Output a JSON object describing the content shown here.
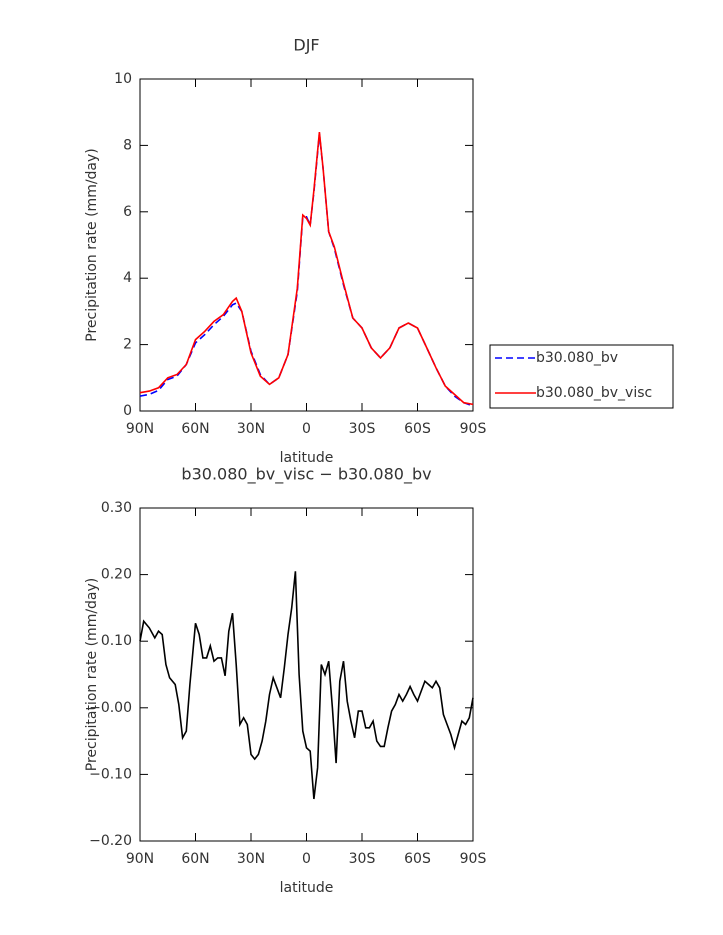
{
  "chart_data": [
    {
      "type": "line",
      "title": "DJF",
      "xlabel": "latitude",
      "ylabel": "Precipitation rate (mm/day)",
      "x": [
        90,
        85,
        80,
        75,
        70,
        65,
        60,
        55,
        50,
        45,
        40,
        38,
        35,
        30,
        25,
        20,
        15,
        10,
        5,
        2,
        0,
        -2,
        -4,
        -7,
        -9,
        -12,
        -15,
        -20,
        -25,
        -30,
        -35,
        -40,
        -45,
        -50,
        -55,
        -60,
        -65,
        -70,
        -75,
        -80,
        -85,
        -90
      ],
      "series": [
        {
          "name": "b30.080_bv",
          "color": "#0000ff",
          "line_style": "dashed",
          "values": [
            0.45,
            0.5,
            0.62,
            0.95,
            1.05,
            1.4,
            2.05,
            2.3,
            2.6,
            2.85,
            3.2,
            3.25,
            3.0,
            1.8,
            1.1,
            0.8,
            1.0,
            1.7,
            3.6,
            5.85,
            5.85,
            5.6,
            6.6,
            8.35,
            7.3,
            5.4,
            4.9,
            3.8,
            2.8,
            2.5,
            1.9,
            1.6,
            1.9,
            2.5,
            2.65,
            2.5,
            1.9,
            1.3,
            0.75,
            0.45,
            0.25,
            0.15
          ]
        },
        {
          "name": "b30.080_bv_visc",
          "color": "#ff0000",
          "line_style": "solid",
          "values": [
            0.55,
            0.6,
            0.7,
            1.0,
            1.1,
            1.4,
            2.15,
            2.4,
            2.7,
            2.9,
            3.3,
            3.4,
            3.0,
            1.75,
            1.05,
            0.8,
            1.0,
            1.7,
            3.7,
            5.9,
            5.8,
            5.6,
            6.65,
            8.4,
            7.3,
            5.4,
            4.95,
            3.85,
            2.8,
            2.5,
            1.9,
            1.6,
            1.9,
            2.5,
            2.65,
            2.5,
            1.9,
            1.3,
            0.75,
            0.5,
            0.25,
            0.2
          ]
        }
      ],
      "xlim": [
        90,
        -90
      ],
      "xticks": [
        {
          "value": 90,
          "label": "90N"
        },
        {
          "value": 60,
          "label": "60N"
        },
        {
          "value": 30,
          "label": "30N"
        },
        0,
        {
          "value": -30,
          "label": "30S"
        },
        {
          "value": -60,
          "label": "60S"
        },
        {
          "value": -90,
          "label": "90S"
        }
      ],
      "ylim": [
        0,
        10
      ],
      "yticks": [
        0,
        2,
        4,
        6,
        8,
        10
      ],
      "legend": "right"
    },
    {
      "type": "line",
      "title": "b30.080_bv_visc − b30.080_bv",
      "xlabel": "latitude",
      "ylabel": "Precipitation rate (mm/day)",
      "color": "#000000",
      "line_style": "solid",
      "x": [
        90,
        88,
        85,
        82,
        80,
        78,
        76,
        74,
        71,
        69,
        67,
        65,
        63,
        60,
        58,
        56,
        54,
        52,
        50,
        48,
        46,
        44,
        42,
        40,
        38,
        36,
        34,
        32,
        30,
        28,
        26,
        24,
        22,
        20,
        18,
        16,
        14,
        12,
        10,
        8,
        6,
        4,
        2,
        0,
        -2,
        -4,
        -6,
        -8,
        -10,
        -12,
        -14,
        -16,
        -18,
        -20,
        -22,
        -24,
        -26,
        -28,
        -30,
        -32,
        -34,
        -36,
        -38,
        -40,
        -42,
        -44,
        -46,
        -48,
        -50,
        -52,
        -54,
        -56,
        -58,
        -60,
        -62,
        -64,
        -66,
        -68,
        -70,
        -72,
        -74,
        -76,
        -78,
        -80,
        -82,
        -84,
        -86,
        -88,
        -90
      ],
      "values": [
        0.1,
        0.13,
        0.12,
        0.105,
        0.115,
        0.11,
        0.065,
        0.045,
        0.035,
        0.005,
        -0.045,
        -0.035,
        0.035,
        0.127,
        0.11,
        0.075,
        0.075,
        0.093,
        0.07,
        0.075,
        0.075,
        0.048,
        0.115,
        0.142,
        0.065,
        -0.025,
        -0.015,
        -0.025,
        -0.07,
        -0.077,
        -0.07,
        -0.05,
        -0.02,
        0.02,
        0.045,
        0.03,
        0.015,
        0.06,
        0.11,
        0.15,
        0.205,
        0.05,
        -0.035,
        -0.06,
        -0.065,
        -0.137,
        -0.09,
        0.065,
        0.05,
        0.07,
        0.0,
        -0.083,
        0.04,
        0.07,
        0.01,
        -0.02,
        -0.045,
        -0.005,
        -0.005,
        -0.03,
        -0.03,
        -0.02,
        -0.05,
        -0.058,
        -0.058,
        -0.03,
        -0.005,
        0.005,
        0.02,
        0.01,
        0.02,
        0.032,
        0.02,
        0.01,
        0.025,
        0.04,
        0.035,
        0.03,
        0.04,
        0.03,
        -0.01,
        -0.025,
        -0.04,
        -0.06,
        -0.04,
        -0.02,
        -0.025,
        -0.015,
        0.015
      ],
      "xlim": [
        90,
        -90
      ],
      "xticks": [
        {
          "value": 90,
          "label": "90N"
        },
        {
          "value": 60,
          "label": "60N"
        },
        {
          "value": 30,
          "label": "30N"
        },
        0,
        {
          "value": -30,
          "label": "30S"
        },
        {
          "value": -60,
          "label": "60S"
        },
        {
          "value": -90,
          "label": "90S"
        }
      ],
      "ylim": [
        -0.2,
        0.3
      ],
      "yticks": [
        {
          "value": -0.2,
          "label": "−0.20"
        },
        {
          "value": -0.1,
          "label": "−0.10"
        },
        {
          "value": 0,
          "label": "−0.00"
        },
        {
          "value": 0.1,
          "label": "0.10"
        },
        {
          "value": 0.2,
          "label": "0.20"
        },
        {
          "value": 0.3,
          "label": "0.30"
        }
      ]
    }
  ]
}
